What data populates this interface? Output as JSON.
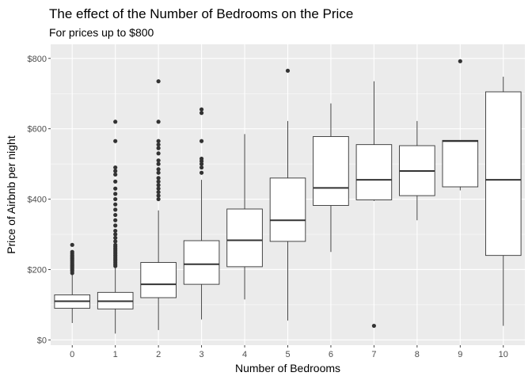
{
  "chart_data": {
    "type": "boxplot",
    "title": "The effect of the Number of Bedrooms on the Price",
    "subtitle": "For prices up to $800",
    "xlabel": "Number of Bedrooms",
    "ylabel": "Price of Airbnb per night",
    "ylim": [
      -15,
      840
    ],
    "yticks": [
      0,
      200,
      400,
      600,
      800
    ],
    "ytick_labels": [
      "$0",
      "$200",
      "$400",
      "$600",
      "$800"
    ],
    "grid": true,
    "categories": [
      "0",
      "1",
      "2",
      "3",
      "4",
      "5",
      "6",
      "7",
      "8",
      "9",
      "10"
    ],
    "boxes": [
      {
        "category": "0",
        "lower": 48,
        "q1": 90,
        "median": 110,
        "q3": 128,
        "upper": 185,
        "outliers": [
          190,
          196,
          200,
          204,
          208,
          212,
          216,
          220,
          224,
          228,
          232,
          236,
          240,
          245,
          250,
          270
        ]
      },
      {
        "category": "1",
        "lower": 18,
        "q1": 88,
        "median": 110,
        "q3": 135,
        "upper": 205,
        "outliers": [
          210,
          215,
          220,
          225,
          230,
          235,
          240,
          245,
          250,
          255,
          260,
          265,
          270,
          280,
          290,
          300,
          310,
          325,
          340,
          355,
          370,
          385,
          400,
          415,
          430,
          450,
          470,
          480,
          490,
          565,
          620
        ]
      },
      {
        "category": "2",
        "lower": 28,
        "q1": 120,
        "median": 158,
        "q3": 220,
        "upper": 368,
        "outliers": [
          400,
          410,
          420,
          430,
          440,
          450,
          460,
          475,
          485,
          500,
          510,
          530,
          545,
          555,
          565,
          620,
          735
        ]
      },
      {
        "category": "3",
        "lower": 58,
        "q1": 158,
        "median": 215,
        "q3": 282,
        "upper": 455,
        "outliers": [
          475,
          490,
          500,
          508,
          515,
          565,
          645,
          655
        ]
      },
      {
        "category": "4",
        "lower": 115,
        "q1": 208,
        "median": 283,
        "q3": 372,
        "upper": 585,
        "outliers": []
      },
      {
        "category": "5",
        "lower": 55,
        "q1": 280,
        "median": 340,
        "q3": 460,
        "upper": 622,
        "outliers": [
          765
        ]
      },
      {
        "category": "6",
        "lower": 250,
        "q1": 382,
        "median": 432,
        "q3": 578,
        "upper": 672,
        "outliers": []
      },
      {
        "category": "7",
        "lower": 395,
        "q1": 398,
        "median": 455,
        "q3": 555,
        "upper": 735,
        "outliers": [
          40
        ]
      },
      {
        "category": "8",
        "lower": 340,
        "q1": 410,
        "median": 480,
        "q3": 552,
        "upper": 622,
        "outliers": []
      },
      {
        "category": "9",
        "lower": 425,
        "q1": 435,
        "median": 565,
        "q3": 567,
        "upper": 567,
        "outliers": [
          792
        ]
      },
      {
        "category": "10",
        "lower": 40,
        "q1": 240,
        "median": 455,
        "q3": 705,
        "upper": 748,
        "outliers": []
      }
    ]
  }
}
